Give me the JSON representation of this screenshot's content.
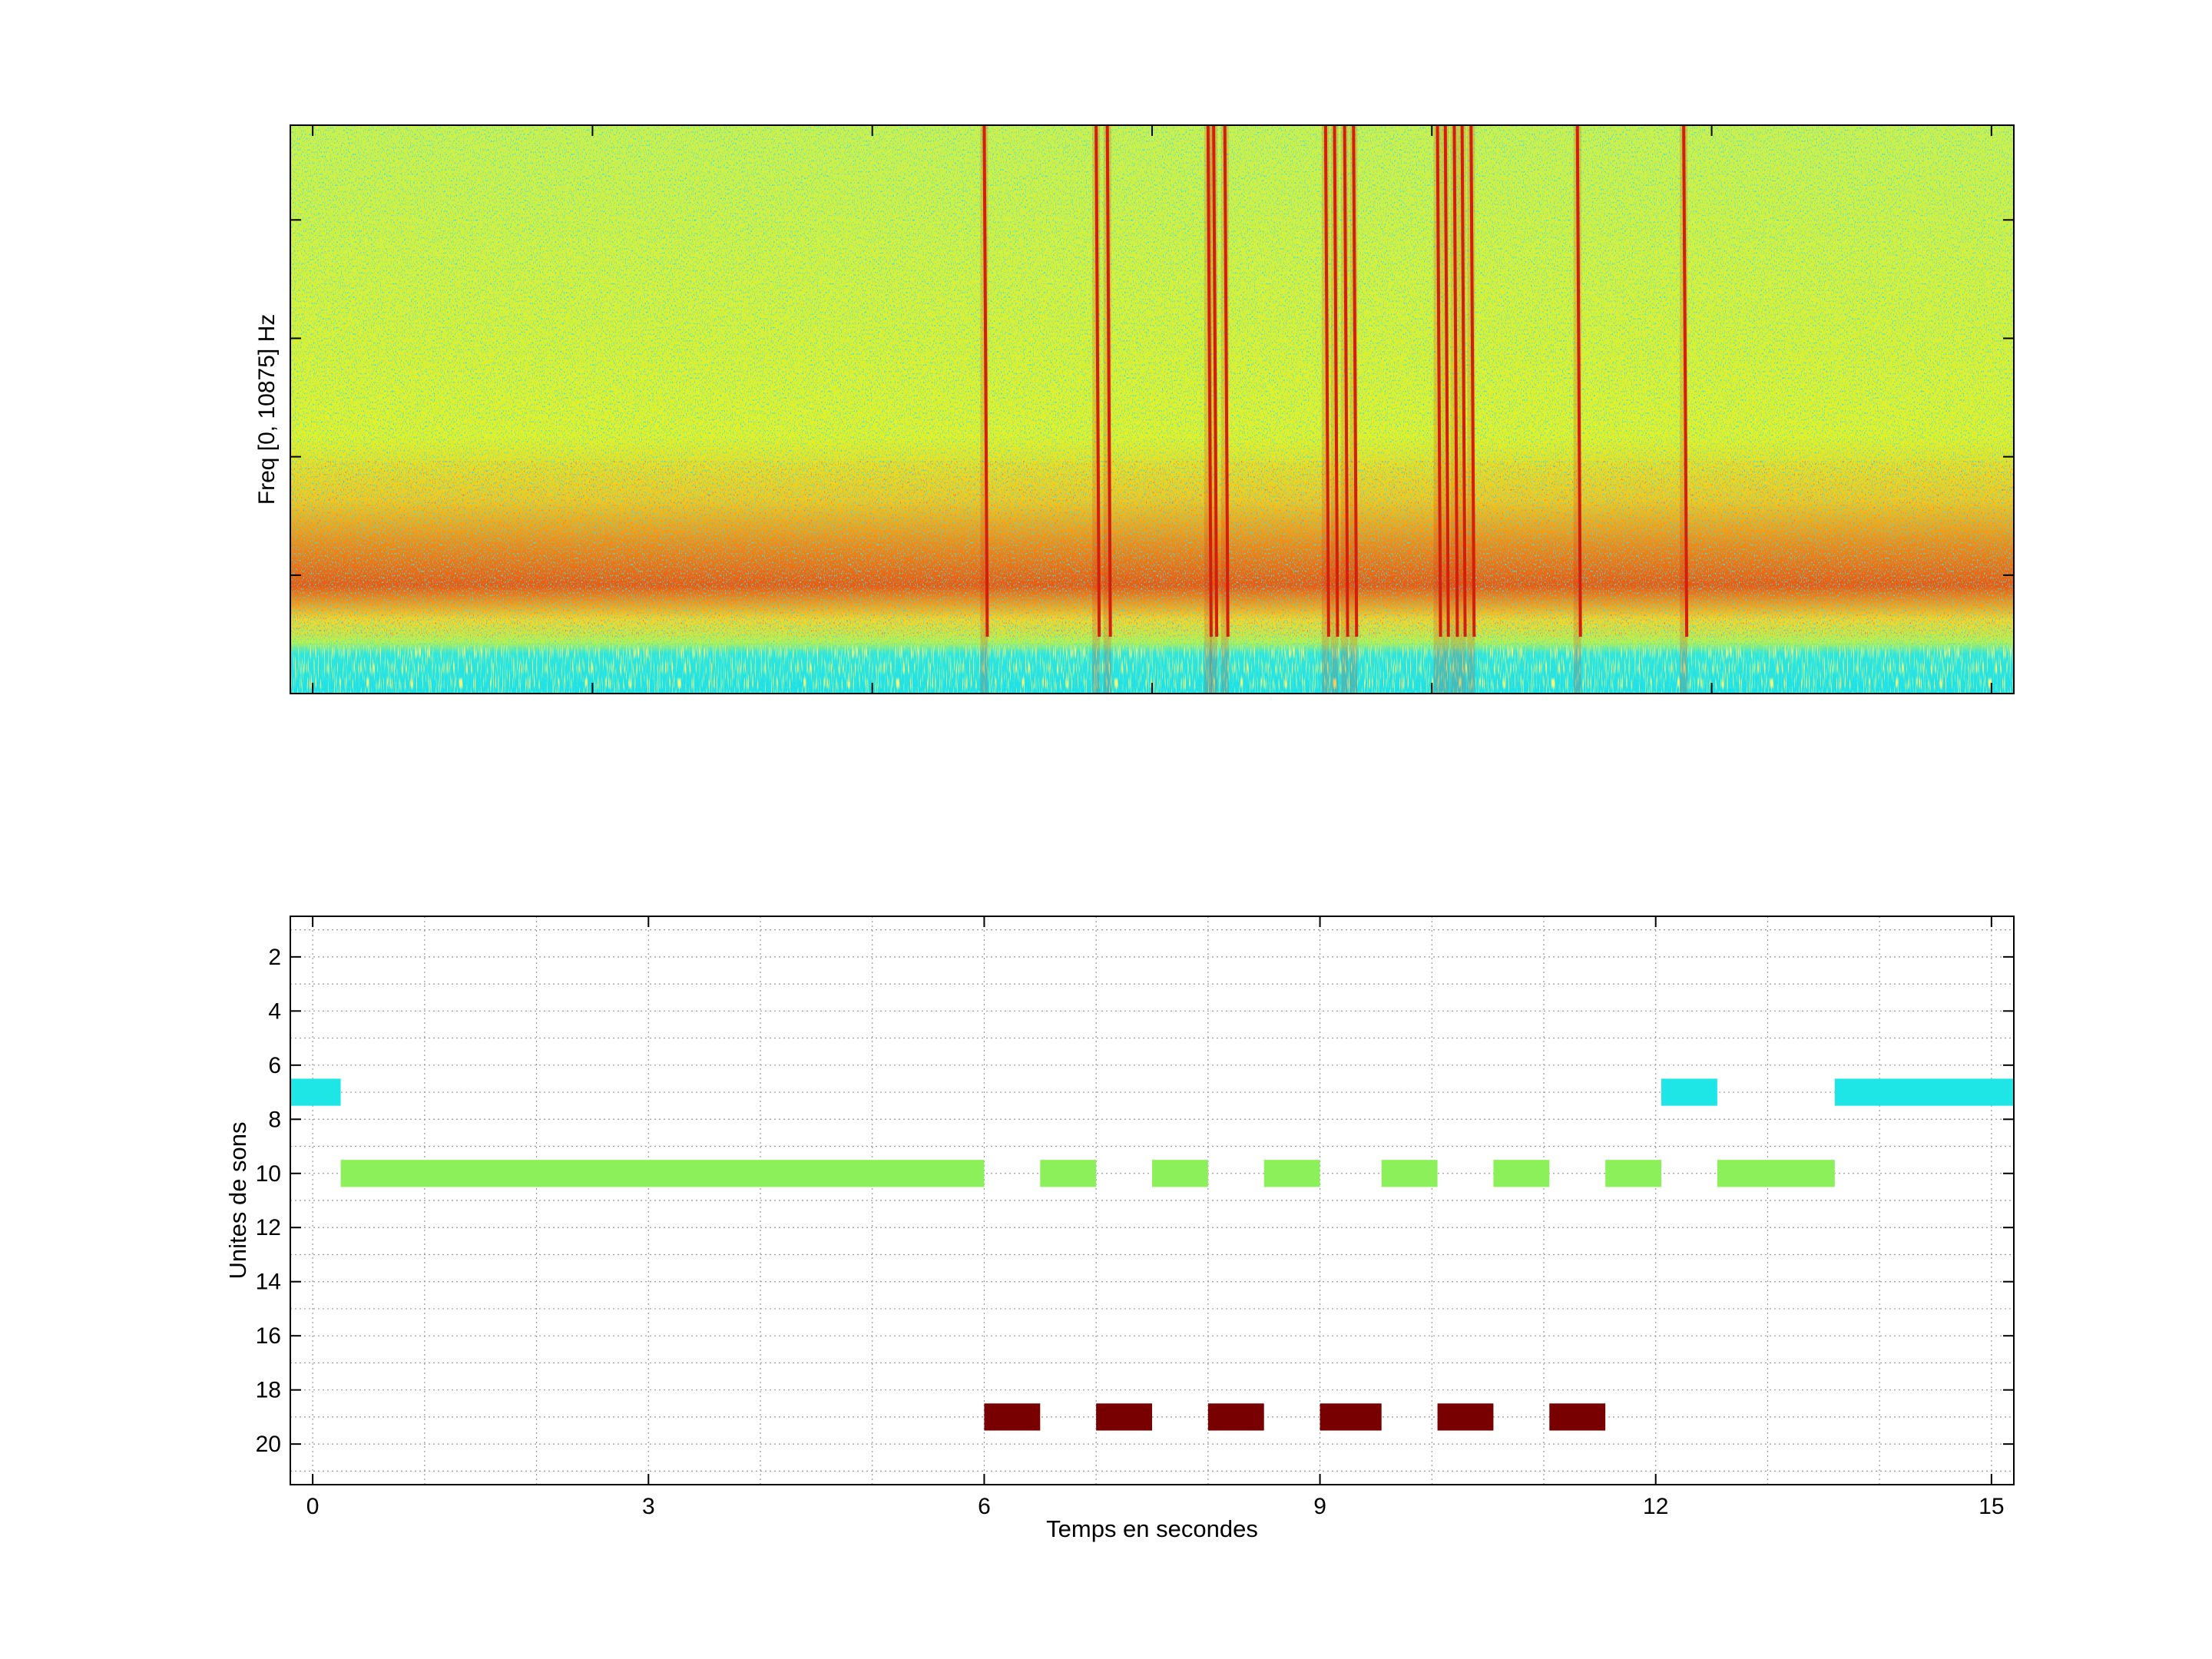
{
  "chart_data": [
    {
      "type": "heatmap",
      "title": "",
      "xlabel": "",
      "ylabel": "Freq [0, 10875] Hz",
      "xlim": [
        -0.2,
        15.2
      ],
      "ylim": [
        0,
        10875
      ],
      "colors": {
        "low": "#19e6e6",
        "mid": "#e1f032",
        "high": "#d21e0a"
      },
      "vertical_lines": [
        6.0,
        7.0,
        7.1,
        8.0,
        8.05,
        8.15,
        9.05,
        9.13,
        9.22,
        9.3,
        10.05,
        10.12,
        10.2,
        10.27,
        10.35,
        11.3,
        12.25
      ]
    },
    {
      "type": "bar",
      "subtype": "horizontal-segments",
      "title": "",
      "xlabel": "Temps en secondes",
      "ylabel": "Unites de sons",
      "xlim": [
        -0.2,
        15.2
      ],
      "ylim": [
        21.5,
        0.5
      ],
      "xticks": [
        "0",
        "3",
        "6",
        "9",
        "12",
        "15"
      ],
      "yticks": [
        "2",
        "4",
        "6",
        "8",
        "10",
        "12",
        "14",
        "16",
        "18",
        "20"
      ],
      "grid": true,
      "colors": {
        "7": "#1fe6e6",
        "10": "#8cf05a",
        "19": "#780000"
      },
      "segments": [
        {
          "unit": 7,
          "start": -0.2,
          "end": 0.25
        },
        {
          "unit": 10,
          "start": 0.25,
          "end": 6.0
        },
        {
          "unit": 19,
          "start": 6.0,
          "end": 6.5
        },
        {
          "unit": 10,
          "start": 6.5,
          "end": 7.0
        },
        {
          "unit": 19,
          "start": 7.0,
          "end": 7.5
        },
        {
          "unit": 10,
          "start": 7.5,
          "end": 8.0
        },
        {
          "unit": 19,
          "start": 8.0,
          "end": 8.5
        },
        {
          "unit": 10,
          "start": 8.5,
          "end": 9.0
        },
        {
          "unit": 19,
          "start": 9.0,
          "end": 9.55
        },
        {
          "unit": 10,
          "start": 9.55,
          "end": 10.05
        },
        {
          "unit": 19,
          "start": 10.05,
          "end": 10.55
        },
        {
          "unit": 10,
          "start": 10.55,
          "end": 11.05
        },
        {
          "unit": 19,
          "start": 11.05,
          "end": 11.55
        },
        {
          "unit": 10,
          "start": 11.55,
          "end": 12.05
        },
        {
          "unit": 7,
          "start": 12.05,
          "end": 12.55
        },
        {
          "unit": 10,
          "start": 12.55,
          "end": 13.6
        },
        {
          "unit": 7,
          "start": 13.6,
          "end": 15.2
        }
      ]
    }
  ]
}
